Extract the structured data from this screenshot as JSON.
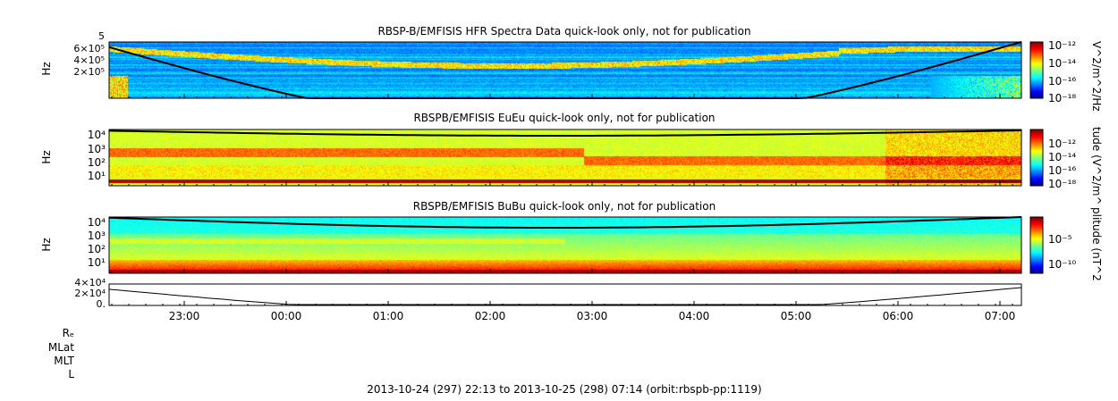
{
  "chart_data": [
    {
      "type": "heatmap",
      "title": "RBSP-B/EMFISIS  HFR Spectra Data quick-look only, not for publication",
      "ylabel": "Hz",
      "yticks": [
        "6×10⁵",
        "4×10⁵",
        "2×10⁵"
      ],
      "ytick_exp_top": "5",
      "colorbar_label": "V^2/m^2/Hz",
      "colorbar_ticks": [
        "10⁻¹²",
        "10⁻¹⁴",
        "10⁻¹⁶",
        "10⁻¹⁸"
      ],
      "colormap": "jet"
    },
    {
      "type": "heatmap",
      "title": "RBSPB/EMFISIS  EuEu quick-look only, not for publication",
      "ylabel": "Hz",
      "yticks": [
        "10⁴",
        "10³",
        "10²",
        "10¹"
      ],
      "colorbar_label": "tude (V^2/m^",
      "colorbar_ticks": [
        "10⁻¹²",
        "10⁻¹⁴",
        "10⁻¹⁶",
        "10⁻¹⁸"
      ],
      "colormap": "jet"
    },
    {
      "type": "heatmap",
      "title": "RBSPB/EMFISIS  BuBu quick-look only, not for publication",
      "ylabel": "Hz",
      "yticks": [
        "10⁴",
        "10³",
        "10²",
        "10¹"
      ],
      "colorbar_label": "plitude (nT^2",
      "colorbar_ticks": [
        "10⁻⁵",
        "10⁻¹⁰"
      ],
      "colormap": "jet"
    },
    {
      "type": "line",
      "yticks": [
        "4×10⁴",
        "2×10⁴",
        "0."
      ]
    }
  ],
  "xaxis": {
    "ticks": [
      "23:00",
      "00:00",
      "01:00",
      "02:00",
      "03:00",
      "04:00",
      "05:00",
      "06:00",
      "07:00"
    ],
    "ephemeris_labels": [
      "Rₑ",
      "MLat",
      "MLT",
      "L"
    ]
  },
  "footer": "2013-10-24 (297) 22:13 to 2013-10-25 (298) 07:14 (orbit:rbspb-pp:1119)"
}
